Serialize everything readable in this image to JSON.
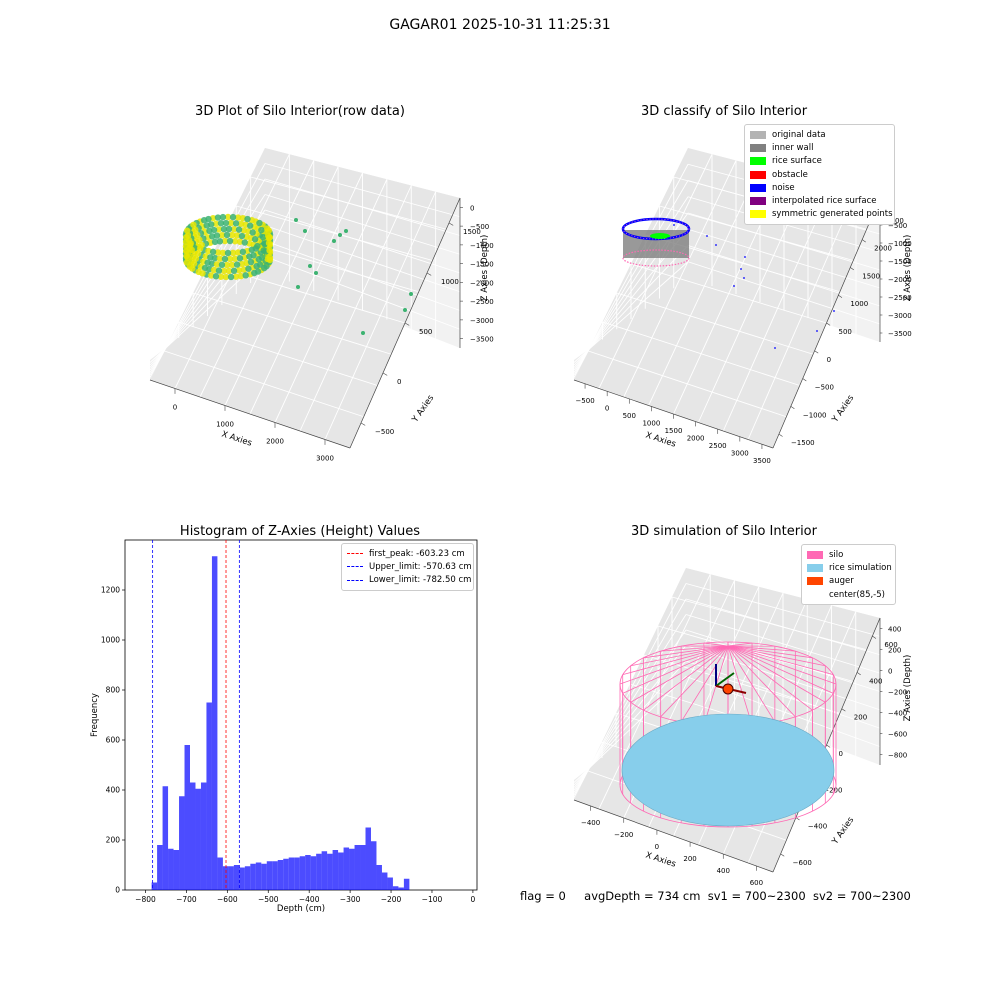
{
  "figure_title": "GAGAR01 2025-10-31 11:25:31",
  "footer": {
    "flag": "flag = 0",
    "avg_depth": "avgDepth = 734 cm",
    "sv1": "sv1 = 700~2300",
    "sv2": "sv2 = 700~2300"
  },
  "chart_data": [
    {
      "type": "scatter",
      "subtype": "3d",
      "title": "3D Plot of Silo Interior(row data)",
      "xlabel": "X Axies",
      "ylabel": "Y Axies",
      "zlabel": "Z Axies (Depth)",
      "x_ticks": [
        "0",
        "1000",
        "2000",
        "3000"
      ],
      "y_ticks": [
        "−500",
        "0",
        "500",
        "1000",
        "1500"
      ],
      "z_ticks": [
        "0",
        "−500",
        "−1000",
        "−1500",
        "−2000",
        "−2500",
        "−3000",
        "−3500"
      ],
      "colors": {
        "low": "#3cb371",
        "high": "#e6e600"
      },
      "grid": true
    },
    {
      "type": "scatter",
      "subtype": "3d",
      "title": "3D classify of Silo Interior",
      "xlabel": "X Axies",
      "ylabel": "Y Axies",
      "zlabel": "Z Axies (Depth)",
      "x_ticks": [
        "−500",
        "0",
        "500",
        "1000",
        "1500",
        "2000",
        "2500",
        "3000",
        "3500"
      ],
      "y_ticks": [
        "−1500",
        "−1000",
        "−500",
        "0",
        "500",
        "1000",
        "1500",
        "2000",
        "2500"
      ],
      "z_ticks": [
        "0",
        "−500",
        "−1000",
        "−1500",
        "−2000",
        "−2500",
        "−3000",
        "−3500"
      ],
      "legend": [
        {
          "label": "original data",
          "color": "#b3b3b3"
        },
        {
          "label": "inner wall",
          "color": "#808080"
        },
        {
          "label": "rice surface",
          "color": "#00ff00"
        },
        {
          "label": "obstacle",
          "color": "#ff0000"
        },
        {
          "label": "noise",
          "color": "#0000ff"
        },
        {
          "label": "interpolated rice surface",
          "color": "#800080"
        },
        {
          "label": "symmetric generated points",
          "color": "#ffff00"
        }
      ],
      "legend_position": "top-right",
      "grid": true
    },
    {
      "type": "bar",
      "subtype": "histogram",
      "title": "Histogram of Z-Axies (Height) Values",
      "xlabel": "Depth (cm)",
      "ylabel": "Frequency",
      "xlim": [
        -850,
        10
      ],
      "ylim": [
        0,
        1400
      ],
      "x_ticks": [
        -800,
        -700,
        -600,
        -500,
        -400,
        -300,
        -200,
        -100,
        0
      ],
      "y_ticks": [
        0,
        200,
        400,
        600,
        800,
        1000,
        1200
      ],
      "bin_width": 13.4,
      "bins_start": -785,
      "values": [
        30,
        180,
        415,
        165,
        160,
        375,
        580,
        430,
        405,
        430,
        750,
        1335,
        130,
        95,
        95,
        100,
        90,
        95,
        105,
        110,
        105,
        115,
        115,
        120,
        125,
        130,
        130,
        135,
        140,
        135,
        145,
        155,
        145,
        160,
        150,
        170,
        165,
        180,
        180,
        250,
        195,
        100,
        70,
        50,
        15,
        10,
        45
      ],
      "bar_color": "#0000ff",
      "lines": [
        {
          "label": "first_peak: -603.23 cm",
          "x": -603.23,
          "color": "#ff0000"
        },
        {
          "label": "Upper_limit: -570.63 cm",
          "x": -570.63,
          "color": "#0000ff"
        },
        {
          "label": "Lower_limit: -782.50 cm",
          "x": -782.5,
          "color": "#0000ff"
        }
      ],
      "legend_position": "top-right"
    },
    {
      "type": "scatter",
      "subtype": "3d-surface",
      "title": "3D simulation of Silo Interior",
      "xlabel": "X Axies",
      "ylabel": "Y Axies",
      "zlabel": "Z Axies (Depth)",
      "x_ticks": [
        "−400",
        "−200",
        "0",
        "200",
        "400",
        "600"
      ],
      "y_ticks": [
        "−600",
        "−400",
        "−200",
        "0",
        "200",
        "400",
        "600"
      ],
      "z_ticks": [
        "400",
        "200",
        "0",
        "−200",
        "−400",
        "−600",
        "−800"
      ],
      "legend": [
        {
          "label": "silo",
          "color": "#ff69b4"
        },
        {
          "label": "rice simulation",
          "color": "#87ceeb"
        },
        {
          "label": "auger",
          "color": "#ff4500"
        },
        {
          "label": "center(85,-5)",
          "color": "#ffffff"
        }
      ],
      "legend_position": "top-right",
      "grid": true
    }
  ]
}
